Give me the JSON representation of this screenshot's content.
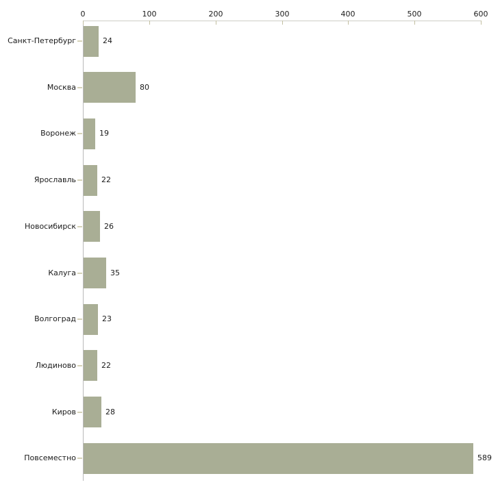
{
  "chart_data": {
    "type": "bar",
    "orientation": "horizontal",
    "title": "",
    "xlabel": "",
    "ylabel": "",
    "axis_position": "top",
    "grid": false,
    "categories": [
      "Санкт-Петербург",
      "Москва",
      "Воронеж",
      "Ярославль",
      "Новосибирск",
      "Калуга",
      "Волгоград",
      "Людиново",
      "Киров",
      "Повсеместно"
    ],
    "values": [
      24,
      80,
      19,
      22,
      26,
      35,
      23,
      22,
      28,
      589
    ],
    "value_labels": [
      "24",
      "80",
      "19",
      "22",
      "26",
      "35",
      "23",
      "22",
      "28",
      "589"
    ],
    "x_ticks": [
      0,
      100,
      200,
      300,
      400,
      500,
      600
    ],
    "x_tick_labels": [
      "0",
      "100",
      "200",
      "300",
      "400",
      "500",
      "600"
    ],
    "xlim": [
      0,
      600
    ],
    "colors": {
      "bar_fill": "#a9ae95",
      "x_axis_line": "#cdcdc5",
      "y_axis_line": "#b9b9b9",
      "tick_mark": "#c3bfa1",
      "category_tick": "#d6d2b8",
      "text": "#1a1a1a",
      "background": "#ffffff"
    }
  }
}
